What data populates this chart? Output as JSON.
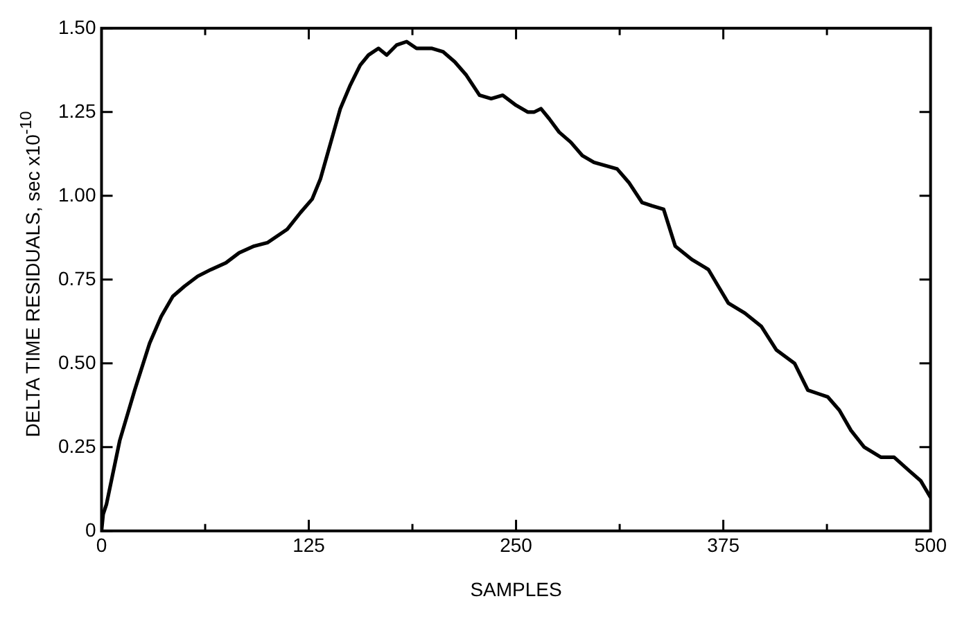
{
  "chart_data": {
    "type": "line",
    "xlabel": "SAMPLES",
    "ylabel": "DELTA TIME RESIDUALS, sec  x10$^{-10}$",
    "xlim": [
      0,
      500
    ],
    "ylim": [
      0,
      1.5
    ],
    "xticks": [
      0,
      {
        "value": 62.5,
        "label": null
      },
      125,
      {
        "value": 187.5,
        "label": null
      },
      250,
      {
        "value": 312.5,
        "label": null
      },
      375,
      {
        "value": 437.5,
        "label": null
      },
      500
    ],
    "yticks": [
      0,
      {
        "value": 0.25,
        "label": "0.25"
      },
      {
        "value": 0.5,
        "label": "0.50"
      },
      {
        "value": 0.75,
        "label": "0.75"
      },
      {
        "value": 1,
        "label": "1.00"
      },
      {
        "value": 1.25,
        "label": "1.25"
      },
      {
        "value": 1.5,
        "label": "1.50"
      }
    ],
    "grid": false,
    "legend": false,
    "marker": "none",
    "line_style": "solid",
    "series": [
      {
        "color": "#000000",
        "x": [
          0,
          1,
          3,
          11,
          20,
          29,
          36,
          43,
          50,
          58,
          66,
          75,
          83,
          92,
          100,
          112,
          120,
          127,
          132,
          136,
          140,
          144,
          150,
          156,
          161,
          167,
          172,
          178,
          184,
          190,
          199,
          206,
          213,
          220,
          228,
          235,
          242,
          250,
          257,
          261,
          265,
          270,
          276,
          283,
          290,
          297,
          304,
          311,
          318,
          326,
          332,
          339,
          346,
          356,
          366,
          372,
          378,
          388,
          398,
          407,
          418,
          426,
          432,
          438,
          445,
          452,
          460,
          470,
          478,
          487,
          494,
          500
        ],
        "values": [
          0,
          0.05,
          0.08,
          0.27,
          0.42,
          0.56,
          0.64,
          0.7,
          0.73,
          0.76,
          0.78,
          0.8,
          0.83,
          0.85,
          0.86,
          0.9,
          0.95,
          0.99,
          1.05,
          1.12,
          1.19,
          1.26,
          1.33,
          1.39,
          1.42,
          1.44,
          1.42,
          1.45,
          1.46,
          1.44,
          1.44,
          1.43,
          1.4,
          1.36,
          1.3,
          1.29,
          1.3,
          1.27,
          1.25,
          1.25,
          1.26,
          1.23,
          1.19,
          1.16,
          1.12,
          1.1,
          1.09,
          1.08,
          1.04,
          0.98,
          0.97,
          0.96,
          0.85,
          0.81,
          0.78,
          0.73,
          0.68,
          0.65,
          0.61,
          0.54,
          0.5,
          0.42,
          0.41,
          0.4,
          0.36,
          0.3,
          0.25,
          0.22,
          0.22,
          0.18,
          0.15,
          0.1
        ]
      }
    ]
  }
}
